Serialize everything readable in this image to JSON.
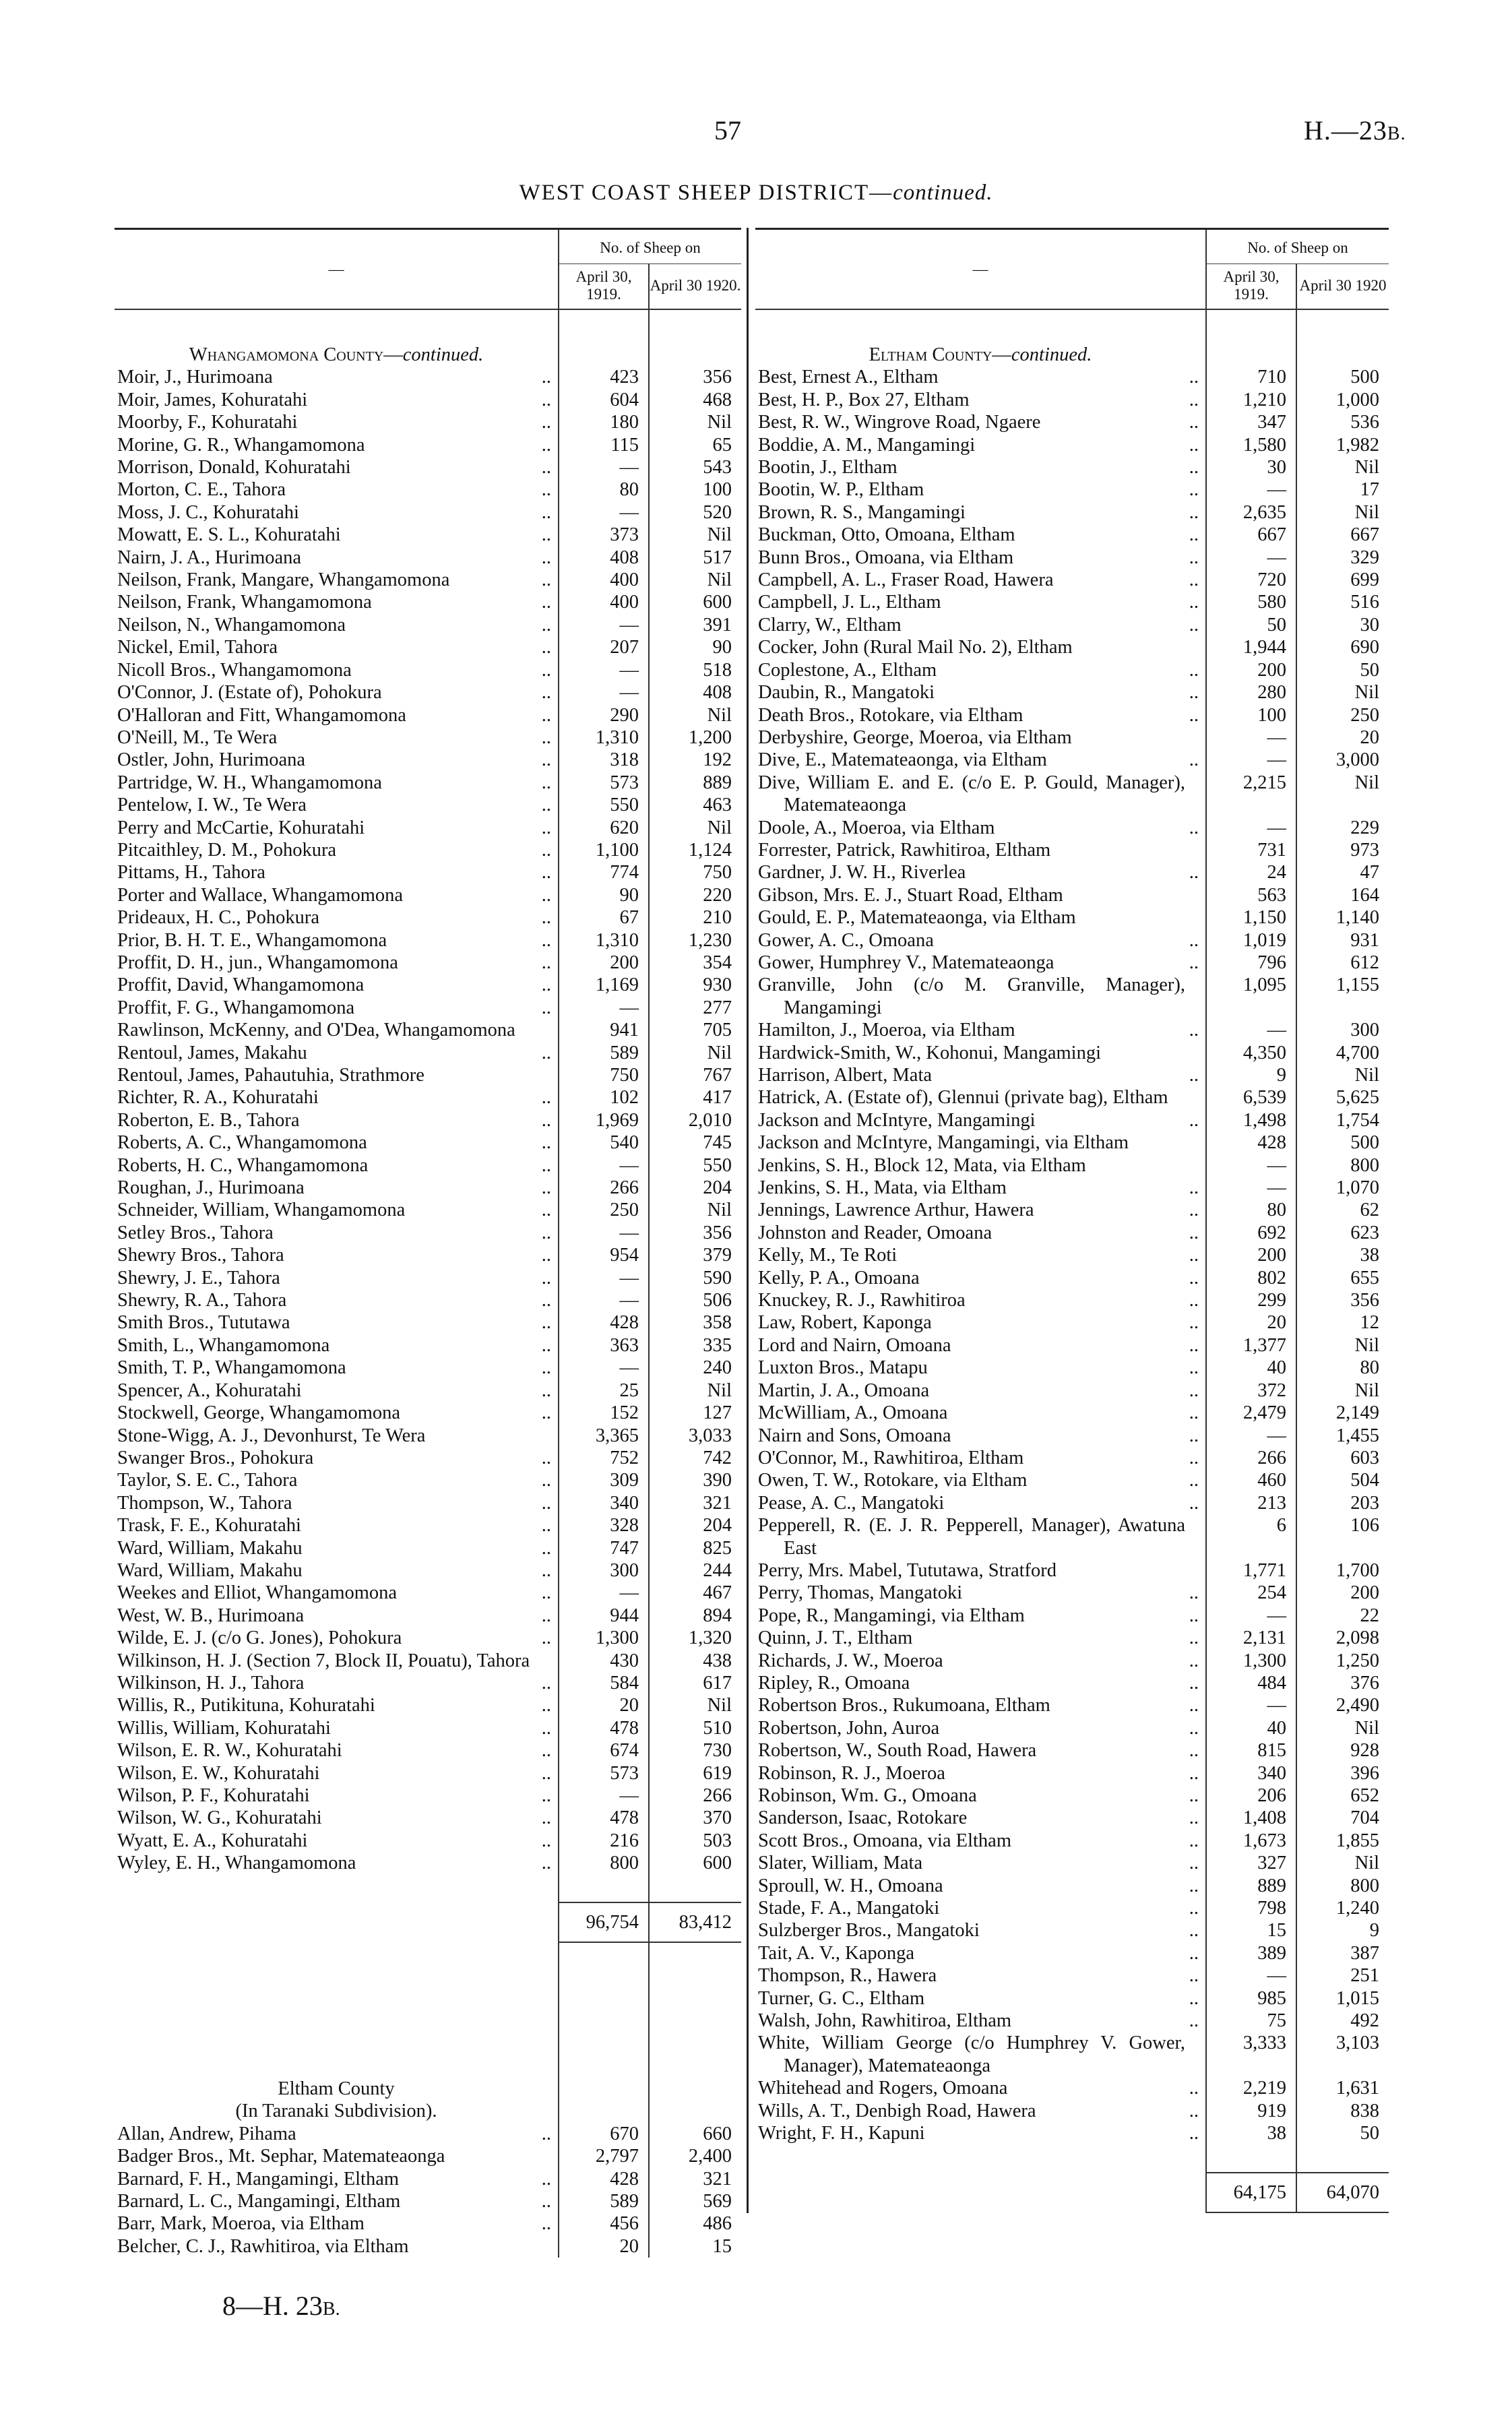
{
  "header": {
    "page_number": "57",
    "reference": "H.—23",
    "reference_suffix": "B."
  },
  "title": {
    "main": "WEST COAST SHEEP DISTRICT—",
    "italic": "continued."
  },
  "columns": {
    "group": "No. of Sheep on",
    "dash": "—",
    "left_1919": "April 30, 1919.",
    "left_1920": "April 30 1920.",
    "right_1919": "April 30, 1919.",
    "right_1920": "April 30 1920"
  },
  "left": {
    "section": "Whangamomona County—",
    "section_italic": "continued.",
    "rows": [
      [
        "Moir, J., Hurimoana",
        "423",
        "356"
      ],
      [
        "Moir, James, Kohuratahi",
        "604",
        "468"
      ],
      [
        "Moorby, F., Kohuratahi",
        "180",
        "Nil"
      ],
      [
        "Morine, G. R., Whangamomona",
        "115",
        "65"
      ],
      [
        "Morrison, Donald, Kohuratahi",
        "—",
        "543"
      ],
      [
        "Morton, C. E., Tahora",
        "80",
        "100"
      ],
      [
        "Moss, J. C., Kohuratahi",
        "—",
        "520"
      ],
      [
        "Mowatt, E. S. L., Kohuratahi",
        "373",
        "Nil"
      ],
      [
        "Nairn, J. A., Hurimoana",
        "408",
        "517"
      ],
      [
        "Neilson, Frank, Mangare, Whangamomona",
        "400",
        "Nil"
      ],
      [
        "Neilson, Frank, Whangamomona",
        "400",
        "600"
      ],
      [
        "Neilson, N., Whangamomona",
        "—",
        "391"
      ],
      [
        "Nickel, Emil, Tahora",
        "207",
        "90"
      ],
      [
        "Nicoll Bros., Whangamomona",
        "—",
        "518"
      ],
      [
        "O'Connor, J. (Estate of), Pohokura",
        "—",
        "408"
      ],
      [
        "O'Halloran and Fitt, Whangamomona",
        "290",
        "Nil"
      ],
      [
        "O'Neill, M., Te Wera",
        "1,310",
        "1,200"
      ],
      [
        "Ostler, John, Hurimoana",
        "318",
        "192"
      ],
      [
        "Partridge, W. H., Whangamomona",
        "573",
        "889"
      ],
      [
        "Pentelow, I. W., Te Wera",
        "550",
        "463"
      ],
      [
        "Perry and McCartie, Kohuratahi",
        "620",
        "Nil"
      ],
      [
        "Pitcaithley, D. M., Pohokura",
        "1,100",
        "1,124"
      ],
      [
        "Pittams, H., Tahora",
        "774",
        "750"
      ],
      [
        "Porter and Wallace, Whangamomona",
        "90",
        "220"
      ],
      [
        "Prideaux, H. C., Pohokura",
        "67",
        "210"
      ],
      [
        "Prior, B. H. T. E., Whangamomona",
        "1,310",
        "1,230"
      ],
      [
        "Proffit, D. H., jun., Whangamomona",
        "200",
        "354"
      ],
      [
        "Proffit, David, Whangamomona",
        "1,169",
        "930"
      ],
      [
        "Proffit, F. G., Whangamomona",
        "—",
        "277"
      ],
      [
        "Rawlinson, McKenny, and O'Dea, Whangamomona",
        "941",
        "705"
      ],
      [
        "Rentoul, James, Makahu",
        "589",
        "Nil"
      ],
      [
        "Rentoul, James, Pahautuhia, Strathmore",
        "750",
        "767"
      ],
      [
        "Richter, R. A., Kohuratahi",
        "102",
        "417"
      ],
      [
        "Roberton, E. B., Tahora",
        "1,969",
        "2,010"
      ],
      [
        "Roberts, A. C., Whangamomona",
        "540",
        "745"
      ],
      [
        "Roberts, H. C., Whangamomona",
        "—",
        "550"
      ],
      [
        "Roughan, J., Hurimoana",
        "266",
        "204"
      ],
      [
        "Schneider, William, Whangamomona",
        "250",
        "Nil"
      ],
      [
        "Setley Bros., Tahora",
        "—",
        "356"
      ],
      [
        "Shewry Bros., Tahora",
        "954",
        "379"
      ],
      [
        "Shewry, J. E., Tahora",
        "—",
        "590"
      ],
      [
        "Shewry, R. A., Tahora",
        "—",
        "506"
      ],
      [
        "Smith Bros., Tututawa",
        "428",
        "358"
      ],
      [
        "Smith, L., Whangamomona",
        "363",
        "335"
      ],
      [
        "Smith, T. P., Whangamomona",
        "—",
        "240"
      ],
      [
        "Spencer, A., Kohuratahi",
        "25",
        "Nil"
      ],
      [
        "Stockwell, George, Whangamomona",
        "152",
        "127"
      ],
      [
        "Stone-Wigg, A. J., Devonhurst, Te Wera",
        "3,365",
        "3,033"
      ],
      [
        "Swanger Bros., Pohokura",
        "752",
        "742"
      ],
      [
        "Taylor, S. E. C., Tahora",
        "309",
        "390"
      ],
      [
        "Thompson, W., Tahora",
        "340",
        "321"
      ],
      [
        "Trask, F. E., Kohuratahi",
        "328",
        "204"
      ],
      [
        "Ward, William, Makahu",
        "747",
        "825"
      ],
      [
        "Ward, William, Makahu",
        "300",
        "244"
      ],
      [
        "Weekes and Elliot, Whangamomona",
        "—",
        "467"
      ],
      [
        "West, W. B., Hurimoana",
        "944",
        "894"
      ],
      [
        "Wilde, E. J. (c/o G. Jones), Pohokura",
        "1,300",
        "1,320"
      ],
      [
        "Wilkinson, H. J. (Section 7, Block II, Pouatu), Tahora",
        "430",
        "438"
      ],
      [
        "Wilkinson, H. J., Tahora",
        "584",
        "617"
      ],
      [
        "Willis, R., Putikituna, Kohuratahi",
        "20",
        "Nil"
      ],
      [
        "Willis, William, Kohuratahi",
        "478",
        "510"
      ],
      [
        "Wilson, E. R. W., Kohuratahi",
        "674",
        "730"
      ],
      [
        "Wilson, E. W., Kohuratahi",
        "573",
        "619"
      ],
      [
        "Wilson, P. F., Kohuratahi",
        "—",
        "266"
      ],
      [
        "Wilson, W. G., Kohuratahi",
        "478",
        "370"
      ],
      [
        "Wyatt, E. A., Kohuratahi",
        "216",
        "503"
      ],
      [
        "Wyley, E. H., Whangamomona",
        "800",
        "600"
      ]
    ],
    "total": [
      "96,754",
      "83,412"
    ],
    "section2": "Eltham County",
    "section2_sub": "(In Taranaki Subdivision).",
    "rows2": [
      [
        "Allan, Andrew, Pihama",
        "670",
        "660"
      ],
      [
        "Badger Bros., Mt. Sephar, Matemateaonga",
        "2,797",
        "2,400"
      ],
      [
        "Barnard, F. H., Mangamingi, Eltham",
        "428",
        "321"
      ],
      [
        "Barnard, L. C., Mangamingi, Eltham",
        "589",
        "569"
      ],
      [
        "Barr, Mark, Moeroa, via Eltham",
        "456",
        "486"
      ],
      [
        "Belcher, C. J., Rawhitiroa, via Eltham",
        "20",
        "15"
      ]
    ]
  },
  "right": {
    "section": "Eltham County—",
    "section_italic": "continued.",
    "rows": [
      [
        "Best, Ernest A., Eltham",
        "710",
        "500"
      ],
      [
        "Best, H. P., Box 27, Eltham",
        "1,210",
        "1,000"
      ],
      [
        "Best, R. W., Wingrove Road, Ngaere",
        "347",
        "536"
      ],
      [
        "Boddie, A. M., Mangamingi",
        "1,580",
        "1,982"
      ],
      [
        "Bootin, J., Eltham",
        "30",
        "Nil"
      ],
      [
        "Bootin, W. P., Eltham",
        "—",
        "17"
      ],
      [
        "Brown, R. S., Mangamingi",
        "2,635",
        "Nil"
      ],
      [
        "Buckman, Otto, Omoana, Eltham",
        "667",
        "667"
      ],
      [
        "Bunn Bros., Omoana, via Eltham",
        "—",
        "329"
      ],
      [
        "Campbell, A. L., Fraser Road, Hawera",
        "720",
        "699"
      ],
      [
        "Campbell, J. L., Eltham",
        "580",
        "516"
      ],
      [
        "Clarry, W., Eltham",
        "50",
        "30"
      ],
      [
        "Cocker, John (Rural Mail No. 2), Eltham",
        "1,944",
        "690"
      ],
      [
        "Coplestone, A., Eltham",
        "200",
        "50"
      ],
      [
        "Daubin, R., Mangatoki",
        "280",
        "Nil"
      ],
      [
        "Death Bros., Rotokare, via Eltham",
        "100",
        "250"
      ],
      [
        "Derbyshire, George, Moeroa, via Eltham",
        "—",
        "20"
      ],
      [
        "Dive, E., Matemateaonga, via Eltham",
        "—",
        "3,000"
      ],
      [
        "Dive, William E. and E. (c/o E. P. Gould, Manager), Matemateaonga",
        "2,215",
        "Nil"
      ],
      [
        "Doole, A., Moeroa, via Eltham",
        "—",
        "229"
      ],
      [
        "Forrester, Patrick, Rawhitiroa, Eltham",
        "731",
        "973"
      ],
      [
        "Gardner, J. W. H., Riverlea",
        "24",
        "47"
      ],
      [
        "Gibson, Mrs. E. J., Stuart Road, Eltham",
        "563",
        "164"
      ],
      [
        "Gould, E. P., Matemateaonga, via Eltham",
        "1,150",
        "1,140"
      ],
      [
        "Gower, A. C., Omoana",
        "1,019",
        "931"
      ],
      [
        "Gower, Humphrey V., Matemateaonga",
        "796",
        "612"
      ],
      [
        "Granville, John (c/o M. Granville, Manager), Mangamingi",
        "1,095",
        "1,155"
      ],
      [
        "Hamilton, J., Moeroa, via Eltham",
        "—",
        "300"
      ],
      [
        "Hardwick-Smith, W., Kohonui, Mangamingi",
        "4,350",
        "4,700"
      ],
      [
        "Harrison, Albert, Mata",
        "9",
        "Nil"
      ],
      [
        "Hatrick, A. (Estate of), Glennui (private bag), Eltham",
        "6,539",
        "5,625"
      ],
      [
        "Jackson and McIntyre, Mangamingi",
        "1,498",
        "1,754"
      ],
      [
        "Jackson and McIntyre, Mangamingi, via Eltham",
        "428",
        "500"
      ],
      [
        "Jenkins, S. H., Block 12, Mata, via Eltham",
        "—",
        "800"
      ],
      [
        "Jenkins, S. H., Mata, via Eltham",
        "—",
        "1,070"
      ],
      [
        "Jennings, Lawrence Arthur, Hawera",
        "80",
        "62"
      ],
      [
        "Johnston and Reader, Omoana",
        "692",
        "623"
      ],
      [
        "Kelly, M., Te Roti",
        "200",
        "38"
      ],
      [
        "Kelly, P. A., Omoana",
        "802",
        "655"
      ],
      [
        "Knuckey, R. J., Rawhitiroa",
        "299",
        "356"
      ],
      [
        "Law, Robert, Kaponga",
        "20",
        "12"
      ],
      [
        "Lord and Nairn, Omoana",
        "1,377",
        "Nil"
      ],
      [
        "Luxton Bros., Matapu",
        "40",
        "80"
      ],
      [
        "Martin, J. A., Omoana",
        "372",
        "Nil"
      ],
      [
        "McWilliam, A., Omoana",
        "2,479",
        "2,149"
      ],
      [
        "Nairn and Sons, Omoana",
        "—",
        "1,455"
      ],
      [
        "O'Connor, M., Rawhitiroa, Eltham",
        "266",
        "603"
      ],
      [
        "Owen, T. W., Rotokare, via Eltham",
        "460",
        "504"
      ],
      [
        "Pease, A. C., Mangatoki",
        "213",
        "203"
      ],
      [
        "Pepperell, R. (E. J. R. Pepperell, Manager), Awatuna East",
        "6",
        "106"
      ],
      [
        "Perry, Mrs. Mabel, Tututawa, Stratford",
        "1,771",
        "1,700"
      ],
      [
        "Perry, Thomas, Mangatoki",
        "254",
        "200"
      ],
      [
        "Pope, R., Mangamingi, via Eltham",
        "—",
        "22"
      ],
      [
        "Quinn, J. T., Eltham",
        "2,131",
        "2,098"
      ],
      [
        "Richards, J. W., Moeroa",
        "1,300",
        "1,250"
      ],
      [
        "Ripley, R., Omoana",
        "484",
        "376"
      ],
      [
        "Robertson Bros., Rukumoana, Eltham",
        "—",
        "2,490"
      ],
      [
        "Robertson, John, Auroa",
        "40",
        "Nil"
      ],
      [
        "Robertson, W., South Road, Hawera",
        "815",
        "928"
      ],
      [
        "Robinson, R. J., Moeroa",
        "340",
        "396"
      ],
      [
        "Robinson, Wm. G., Omoana",
        "206",
        "652"
      ],
      [
        "Sanderson, Isaac, Rotokare",
        "1,408",
        "704"
      ],
      [
        "Scott Bros., Omoana, via Eltham",
        "1,673",
        "1,855"
      ],
      [
        "Slater, William, Mata",
        "327",
        "Nil"
      ],
      [
        "Sproull, W. H., Omoana",
        "889",
        "800"
      ],
      [
        "Stade, F. A., Mangatoki",
        "798",
        "1,240"
      ],
      [
        "Sulzberger Bros., Mangatoki",
        "15",
        "9"
      ],
      [
        "Tait, A. V., Kaponga",
        "389",
        "387"
      ],
      [
        "Thompson, R., Hawera",
        "—",
        "251"
      ],
      [
        "Turner, G. C., Eltham",
        "985",
        "1,015"
      ],
      [
        "Walsh, John, Rawhitiroa, Eltham",
        "75",
        "492"
      ],
      [
        "White, William George (c/o Humphrey V. Gower, Manager), Matemateaonga",
        "3,333",
        "3,103"
      ],
      [
        "Whitehead and Rogers, Omoana",
        "2,219",
        "1,631"
      ],
      [
        "Wills, A. T., Denbigh Road, Hawera",
        "919",
        "838"
      ],
      [
        "Wright, F. H., Kapuni",
        "38",
        "50"
      ]
    ],
    "total": [
      "64,175",
      "64,070"
    ]
  },
  "footer": {
    "text": "8—H. 23",
    "suffix": "B."
  }
}
